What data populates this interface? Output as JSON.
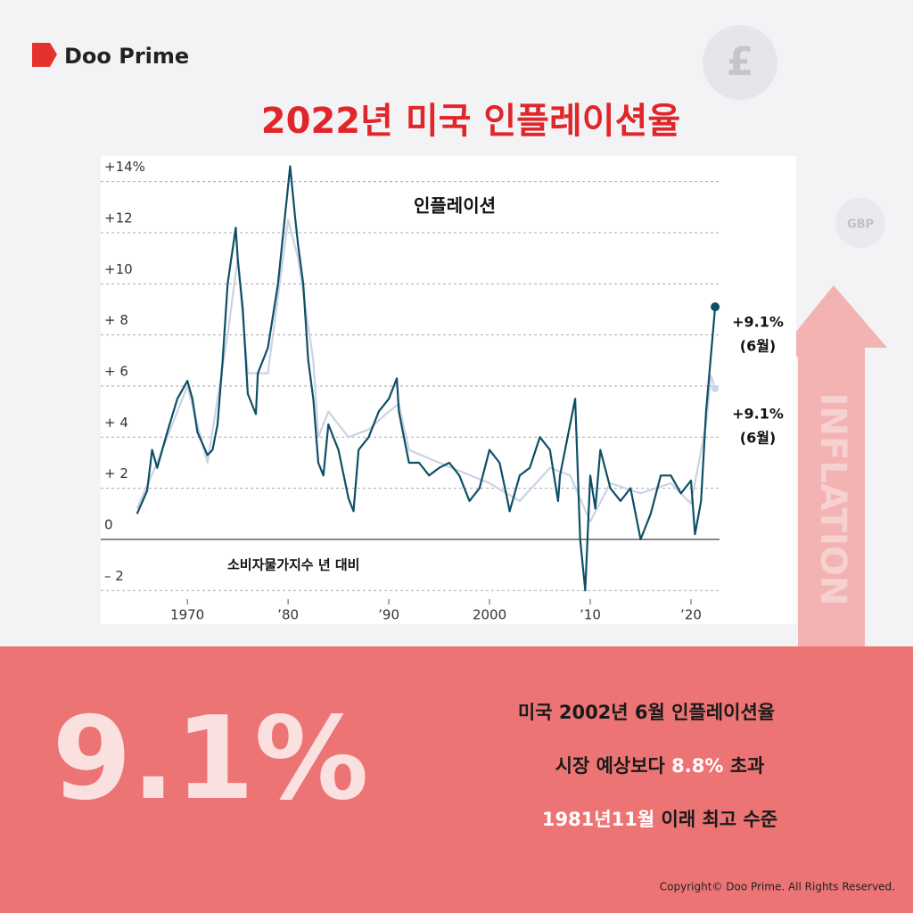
{
  "brand": "Doo Prime",
  "title": "2022년 미국 인플레이션율",
  "decor": {
    "coin": "£",
    "badge": "GBP",
    "arrow": "INFLATION"
  },
  "chart_data": {
    "type": "line",
    "title": "인플레이션",
    "axis_note": "소비자물가지수 년 대비",
    "annotations": [
      [
        "+9.1%",
        "(6월)"
      ],
      [
        "+9.1%",
        "(6월)"
      ]
    ],
    "xlim": [
      1961.4,
      2023.1
    ],
    "xticks": [
      1970,
      {
        "value": 1980,
        "label": "’80"
      },
      {
        "value": 1990,
        "label": "’90"
      },
      2000,
      {
        "value": 2010,
        "label": "’10"
      },
      {
        "value": 2020,
        "label": "’20"
      }
    ],
    "ylim": [
      -2.2,
      15
    ],
    "yticks": [
      {
        "value": -2,
        "label": "– 2"
      },
      0,
      {
        "value": 2,
        "label": "+ 2"
      },
      {
        "value": 4,
        "label": "+ 4"
      },
      {
        "value": 6,
        "label": "+ 6"
      },
      {
        "value": 8,
        "label": "+ 8"
      },
      {
        "value": 10,
        "label": "+10"
      },
      {
        "value": 12,
        "label": "+12"
      },
      {
        "value": 14,
        "label": "+14%"
      }
    ],
    "grid": true,
    "series": [
      {
        "color": "#c9d4e4",
        "x": [
          1965,
          1967,
          1970,
          1972,
          1974,
          1975,
          1976,
          1978,
          1980,
          1981,
          1982.5,
          1983,
          1984,
          1986,
          1988,
          1990,
          1991,
          1992,
          1995,
          2000,
          2003,
          2006,
          2008,
          2010,
          2012,
          2015,
          2018,
          2020,
          2021.5,
          2022,
          2022.4
        ],
        "values": [
          1.2,
          3,
          6,
          3,
          8,
          11,
          6.5,
          6.5,
          12.5,
          11,
          7,
          4,
          5,
          4,
          4.3,
          5,
          5.3,
          3.5,
          3,
          2.2,
          1.5,
          2.8,
          2.5,
          0.7,
          2.2,
          1.8,
          2.2,
          1.4,
          4.5,
          6.4,
          5.9
        ]
      },
      {
        "color": "#0e4f66",
        "x": [
          1965,
          1966,
          1966.5,
          1967,
          1968,
          1969,
          1970,
          1970.5,
          1971,
          1972,
          1972.5,
          1973,
          1973.5,
          1974,
          1974.8,
          1975,
          1975.5,
          1976,
          1976.8,
          1977,
          1978,
          1979,
          1980.2,
          1980.7,
          1981,
          1981.5,
          1982,
          1982.5,
          1983,
          1983.5,
          1984,
          1985,
          1986,
          1986.5,
          1987,
          1988,
          1989,
          1990,
          1990.8,
          1991,
          1991.5,
          1992,
          1993,
          1994,
          1995,
          1996,
          1997,
          1998,
          1999,
          2000,
          2001,
          2001.8,
          2002,
          2003,
          2004,
          2005,
          2006,
          2006.8,
          2007,
          2008.5,
          2009,
          2009.5,
          2010,
          2010.5,
          2011,
          2012,
          2013,
          2014,
          2015,
          2016,
          2017,
          2018,
          2019,
          2020,
          2020.4,
          2021,
          2021.5,
          2022.4
        ],
        "values": [
          1.0,
          1.9,
          3.5,
          2.8,
          4.2,
          5.5,
          6.2,
          5.5,
          4.2,
          3.3,
          3.5,
          4.5,
          7,
          10,
          12.2,
          11,
          9,
          5.7,
          4.9,
          6.5,
          7.5,
          10,
          14.6,
          12.6,
          11.5,
          10,
          7,
          5.5,
          3.0,
          2.5,
          4.5,
          3.5,
          1.6,
          1.1,
          3.5,
          4,
          5,
          5.5,
          6.3,
          5,
          4,
          3.0,
          3.0,
          2.5,
          2.8,
          3.0,
          2.5,
          1.5,
          2,
          3.5,
          3.0,
          1.5,
          1.1,
          2.5,
          2.8,
          4,
          3.5,
          1.5,
          2.5,
          5.5,
          0,
          -2,
          2.5,
          1.2,
          3.5,
          2,
          1.5,
          2,
          0,
          1,
          2.5,
          2.5,
          1.8,
          2.3,
          0.2,
          1.5,
          5,
          9.1
        ]
      }
    ]
  },
  "highlight": {
    "big": "9.1%",
    "line1": "미국 2002년 6월 인플레이션율",
    "line2": [
      "시장 예상보다 ",
      "8.8%",
      " 초과"
    ],
    "line3": [
      "1981년11월",
      " 이래 최고 수준"
    ]
  },
  "copyright": "Copyright© Doo Prime. All Rights Reserved."
}
